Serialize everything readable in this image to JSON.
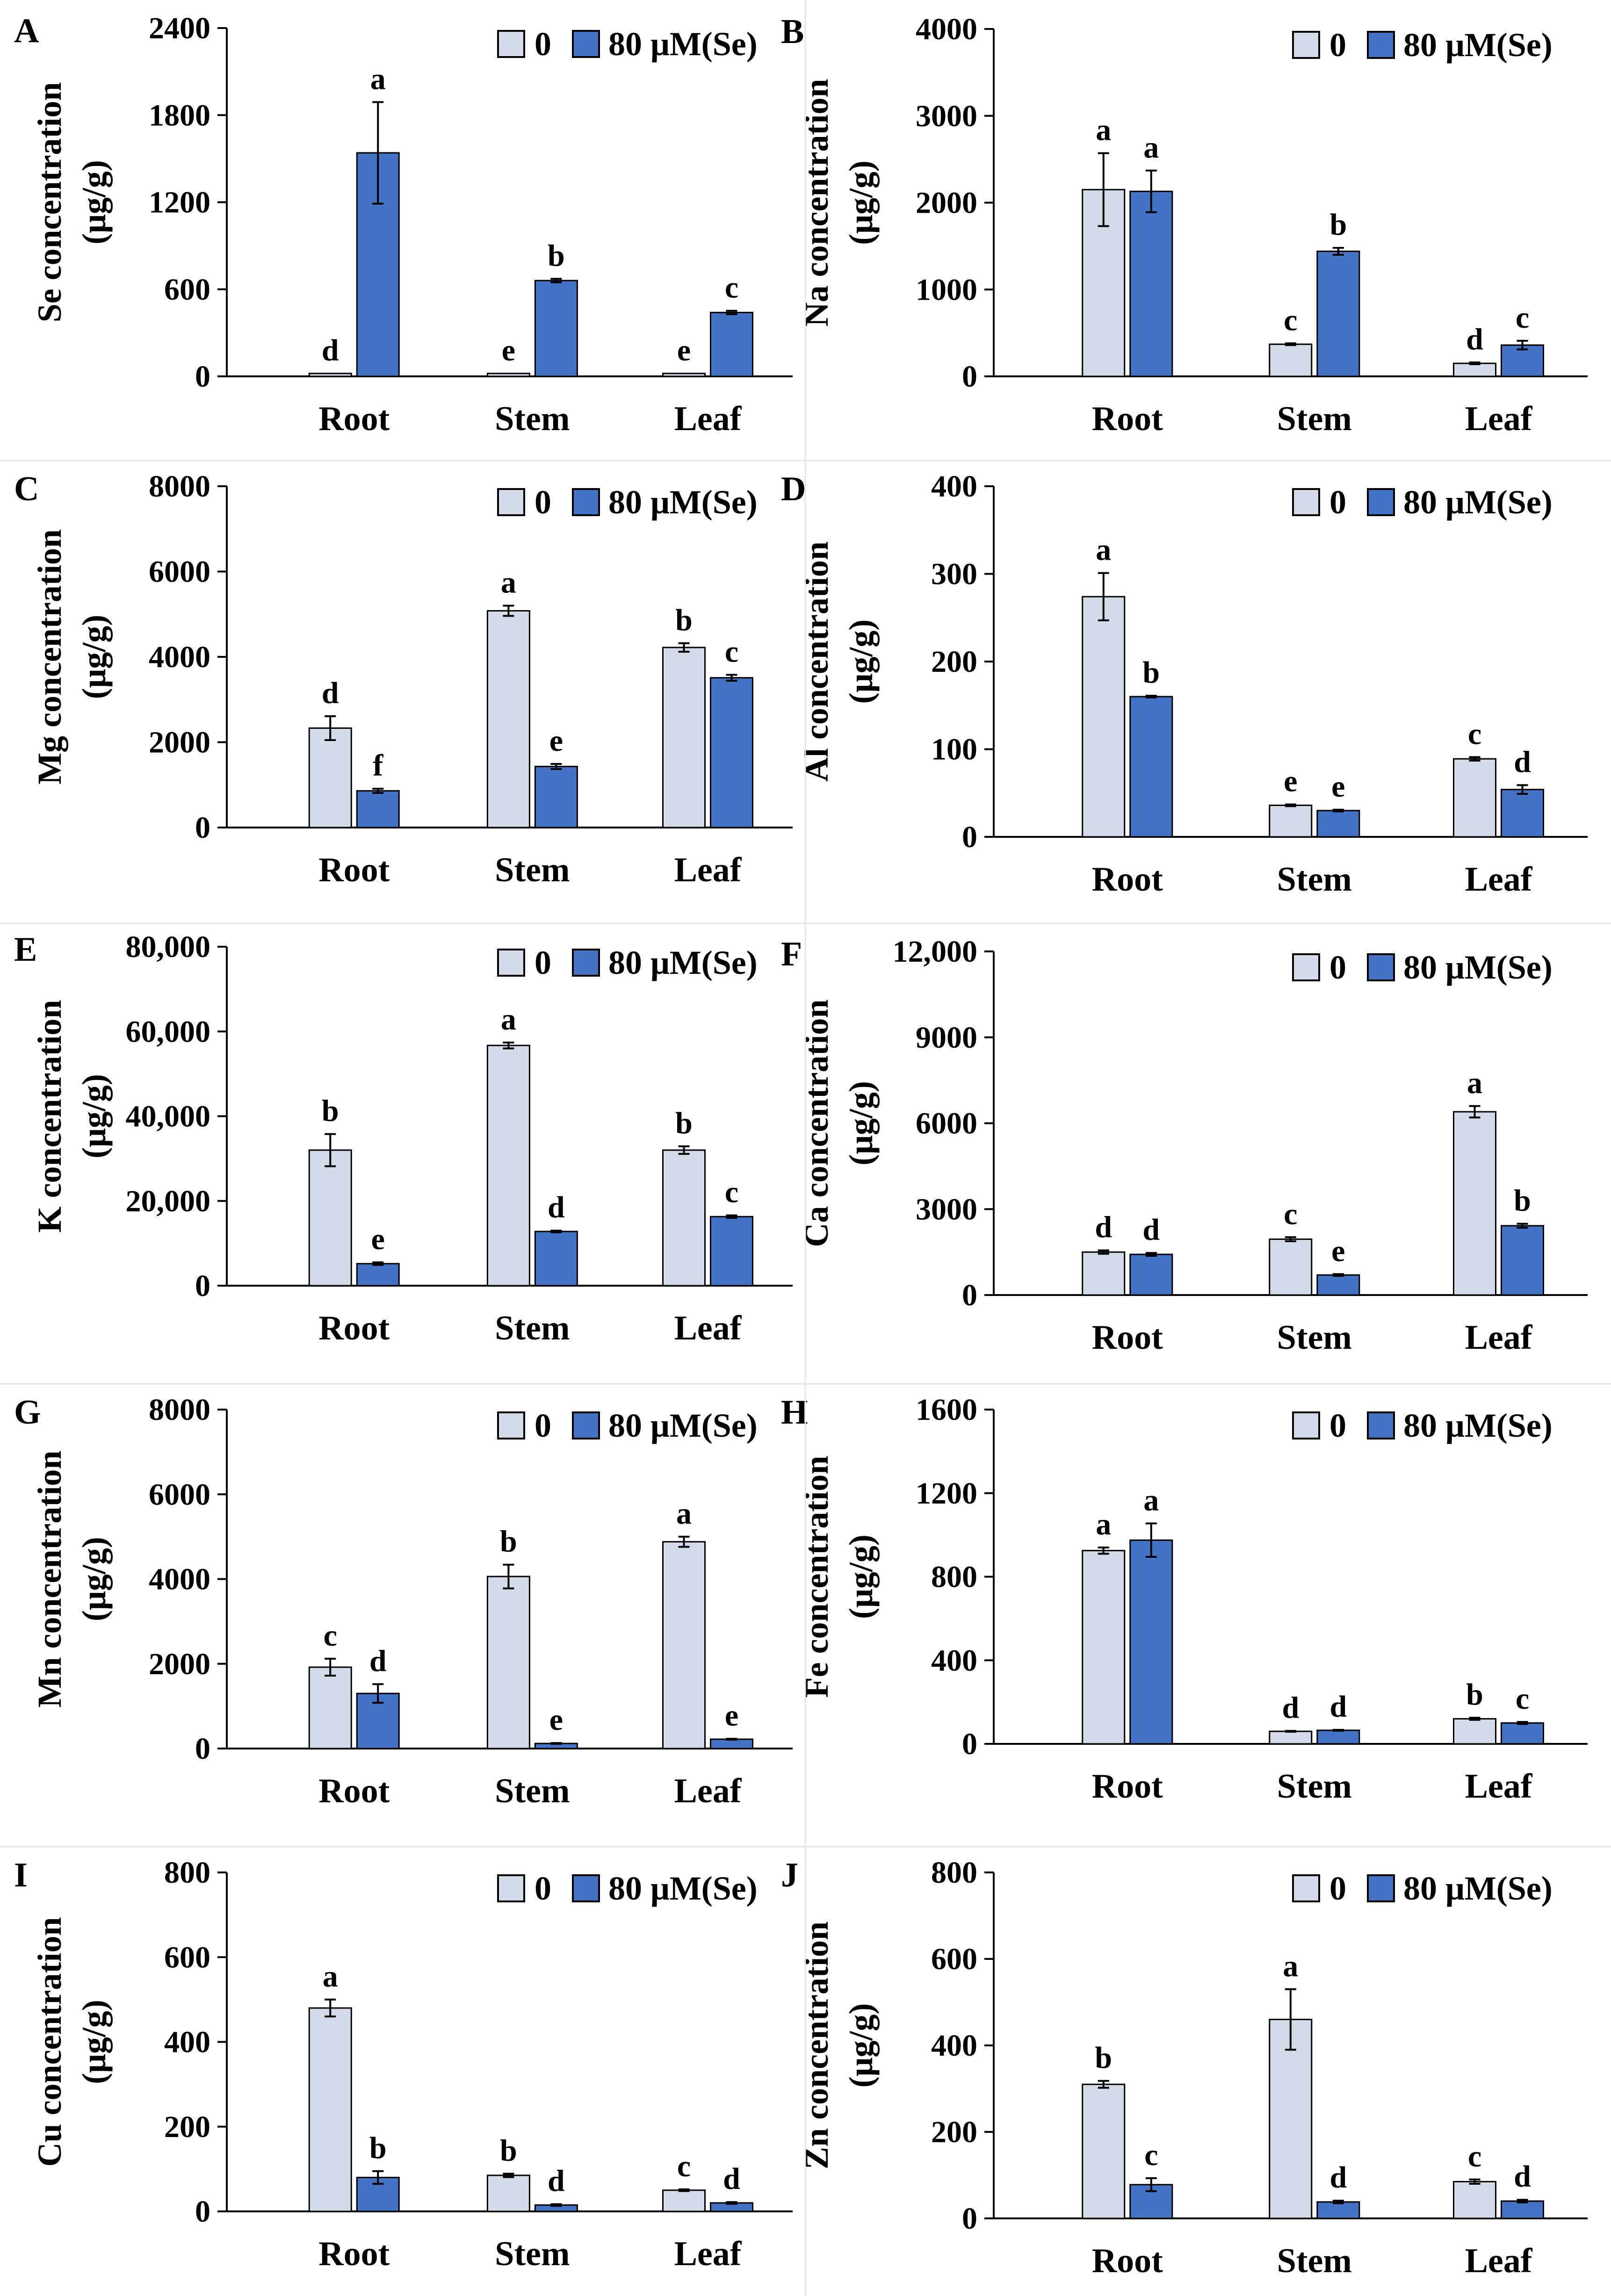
{
  "chart_data": [
    {
      "panel": "A",
      "type": "bar",
      "categories": [
        "Root",
        "Stem",
        "Leaf"
      ],
      "ylabel_line1": "Se concentration",
      "ylabel_line2": "(μg/g)",
      "ylim": [
        0,
        2400
      ],
      "yticks": [
        "0",
        "600",
        "1200",
        "1800",
        "2400"
      ],
      "legend": [
        "0",
        "80 μM(Se)"
      ],
      "series": [
        {
          "name": "0",
          "color": "#d3dbe9",
          "values": [
            20,
            20,
            20
          ],
          "errors": [
            0,
            0,
            0
          ],
          "letters": [
            "d",
            "e",
            "e"
          ]
        },
        {
          "name": "80 μM(Se)",
          "color": "#4472c4",
          "values": [
            1540,
            660,
            440
          ],
          "errors": [
            350,
            12,
            12
          ],
          "letters": [
            "a",
            "b",
            "c"
          ]
        }
      ]
    },
    {
      "panel": "B",
      "type": "bar",
      "categories": [
        "Root",
        "Stem",
        "Leaf"
      ],
      "ylabel_line1": "Na concentration",
      "ylabel_line2": "(μg/g)",
      "ylim": [
        0,
        4000
      ],
      "yticks": [
        "0",
        "1000",
        "2000",
        "3000",
        "4000"
      ],
      "legend": [
        "0",
        "80 μM(Se)"
      ],
      "series": [
        {
          "name": "0",
          "color": "#d3dbe9",
          "values": [
            2150,
            370,
            150
          ],
          "errors": [
            420,
            10,
            10
          ],
          "letters": [
            "a",
            "c",
            "d"
          ]
        },
        {
          "name": "80 μM(Se)",
          "color": "#4472c4",
          "values": [
            2130,
            1440,
            360
          ],
          "errors": [
            240,
            40,
            50
          ],
          "letters": [
            "a",
            "b",
            "c"
          ]
        }
      ]
    },
    {
      "panel": "C",
      "type": "bar",
      "categories": [
        "Root",
        "Stem",
        "Leaf"
      ],
      "ylabel_line1": "Mg concentration",
      "ylabel_line2": "(μg/g)",
      "ylim": [
        0,
        8000
      ],
      "yticks": [
        "0",
        "2000",
        "4000",
        "6000",
        "8000"
      ],
      "legend": [
        "0",
        "80 μM(Se)"
      ],
      "series": [
        {
          "name": "0",
          "color": "#d3dbe9",
          "values": [
            2330,
            5080,
            4220
          ],
          "errors": [
            280,
            120,
            100
          ],
          "letters": [
            "d",
            "a",
            "b"
          ]
        },
        {
          "name": "80 μM(Se)",
          "color": "#4472c4",
          "values": [
            860,
            1430,
            3510
          ],
          "errors": [
            50,
            60,
            70
          ],
          "letters": [
            "f",
            "e",
            "c"
          ]
        }
      ]
    },
    {
      "panel": "D",
      "type": "bar",
      "categories": [
        "Root",
        "Stem",
        "Leaf"
      ],
      "ylabel_line1": "Al concentration",
      "ylabel_line2": "(μg/g)",
      "ylim": [
        0,
        400
      ],
      "yticks": [
        "0",
        "100",
        "200",
        "300",
        "400"
      ],
      "legend": [
        "0",
        "80 μM(Se)"
      ],
      "series": [
        {
          "name": "0",
          "color": "#d3dbe9",
          "values": [
            274,
            36,
            89
          ],
          "errors": [
            27,
            1,
            2
          ],
          "letters": [
            "a",
            "e",
            "c"
          ]
        },
        {
          "name": "80 μM(Se)",
          "color": "#4472c4",
          "values": [
            160,
            30,
            54
          ],
          "errors": [
            1,
            1,
            5
          ],
          "letters": [
            "b",
            "e",
            "d"
          ]
        }
      ]
    },
    {
      "panel": "E",
      "type": "bar",
      "categories": [
        "Root",
        "Stem",
        "Leaf"
      ],
      "ylabel_line1": "K concentration",
      "ylabel_line2": "(μg/g)",
      "ylim": [
        0,
        80000
      ],
      "yticks": [
        "0",
        "20,000",
        "40,000",
        "60,000",
        "80,000"
      ],
      "legend": [
        "0",
        "80 μM(Se)"
      ],
      "series": [
        {
          "name": "0",
          "color": "#d3dbe9",
          "values": [
            32000,
            56700,
            32000
          ],
          "errors": [
            3800,
            700,
            900
          ],
          "letters": [
            "b",
            "a",
            "b"
          ]
        },
        {
          "name": "80 μM(Se)",
          "color": "#4472c4",
          "values": [
            5200,
            12800,
            16300
          ],
          "errors": [
            300,
            200,
            300
          ],
          "letters": [
            "e",
            "d",
            "c"
          ]
        }
      ]
    },
    {
      "panel": "F",
      "type": "bar",
      "categories": [
        "Root",
        "Stem",
        "Leaf"
      ],
      "ylabel_line1": "Ca concentration",
      "ylabel_line2": "(μg/g)",
      "ylim": [
        0,
        12000
      ],
      "yticks": [
        "0",
        "3000",
        "6000",
        "9000",
        "12,000"
      ],
      "legend": [
        "0",
        "80 μM(Se)"
      ],
      "series": [
        {
          "name": "0",
          "color": "#d3dbe9",
          "values": [
            1500,
            1950,
            6400
          ],
          "errors": [
            60,
            70,
            200
          ],
          "letters": [
            "d",
            "c",
            "a"
          ]
        },
        {
          "name": "80 μM(Se)",
          "color": "#4472c4",
          "values": [
            1420,
            700,
            2420
          ],
          "errors": [
            50,
            30,
            70
          ],
          "letters": [
            "d",
            "e",
            "b"
          ]
        }
      ]
    },
    {
      "panel": "G",
      "type": "bar",
      "categories": [
        "Root",
        "Stem",
        "Leaf"
      ],
      "ylabel_line1": "Mn concentration",
      "ylabel_line2": "(μg/g)",
      "ylim": [
        0,
        8000
      ],
      "yticks": [
        "0",
        "2000",
        "4000",
        "6000",
        "8000"
      ],
      "legend": [
        "0",
        "80 μM(Se)"
      ],
      "series": [
        {
          "name": "0",
          "color": "#d3dbe9",
          "values": [
            1920,
            4060,
            4880
          ],
          "errors": [
            200,
            280,
            120
          ],
          "letters": [
            "c",
            "b",
            "a"
          ]
        },
        {
          "name": "80 μM(Se)",
          "color": "#4472c4",
          "values": [
            1300,
            120,
            220
          ],
          "errors": [
            220,
            10,
            10
          ],
          "letters": [
            "d",
            "e",
            "e"
          ]
        }
      ]
    },
    {
      "panel": "H",
      "type": "bar",
      "categories": [
        "Root",
        "Stem",
        "Leaf"
      ],
      "ylabel_line1": "Fe concentration",
      "ylabel_line2": "(μg/g)",
      "ylim": [
        0,
        1600
      ],
      "yticks": [
        "0",
        "400",
        "800",
        "1200",
        "1600"
      ],
      "legend": [
        "0",
        "80 μM(Se)"
      ],
      "series": [
        {
          "name": "0",
          "color": "#d3dbe9",
          "values": [
            925,
            60,
            120
          ],
          "errors": [
            15,
            2,
            5
          ],
          "letters": [
            "a",
            "d",
            "b"
          ]
        },
        {
          "name": "80 μM(Se)",
          "color": "#4472c4",
          "values": [
            975,
            65,
            100
          ],
          "errors": [
            80,
            2,
            5
          ],
          "letters": [
            "a",
            "d",
            "c"
          ]
        }
      ]
    },
    {
      "panel": "I",
      "type": "bar",
      "categories": [
        "Root",
        "Stem",
        "Leaf"
      ],
      "ylabel_line1": "Cu concentration",
      "ylabel_line2": "(μg/g)",
      "ylim": [
        0,
        800
      ],
      "yticks": [
        "0",
        "200",
        "400",
        "600",
        "800"
      ],
      "legend": [
        "0",
        "80 μM(Se)"
      ],
      "series": [
        {
          "name": "0",
          "color": "#d3dbe9",
          "values": [
            480,
            85,
            50
          ],
          "errors": [
            20,
            4,
            2
          ],
          "letters": [
            "a",
            "b",
            "c"
          ]
        },
        {
          "name": "80 μM(Se)",
          "color": "#4472c4",
          "values": [
            80,
            15,
            20
          ],
          "errors": [
            15,
            2,
            2
          ],
          "letters": [
            "b",
            "d",
            "d"
          ]
        }
      ]
    },
    {
      "panel": "J",
      "type": "bar",
      "categories": [
        "Root",
        "Stem",
        "Leaf"
      ],
      "ylabel_line1": "Zn concentration",
      "ylabel_line2": "(μg/g)",
      "ylim": [
        0,
        800
      ],
      "yticks": [
        "0",
        "200",
        "400",
        "600",
        "800"
      ],
      "legend": [
        "0",
        "80 μM(Se)"
      ],
      "series": [
        {
          "name": "0",
          "color": "#d3dbe9",
          "values": [
            310,
            460,
            85
          ],
          "errors": [
            8,
            70,
            5
          ],
          "letters": [
            "b",
            "a",
            "c"
          ]
        },
        {
          "name": "80 μM(Se)",
          "color": "#4472c4",
          "values": [
            78,
            38,
            40
          ],
          "errors": [
            15,
            3,
            3
          ],
          "letters": [
            "c",
            "d",
            "d"
          ]
        }
      ]
    }
  ]
}
